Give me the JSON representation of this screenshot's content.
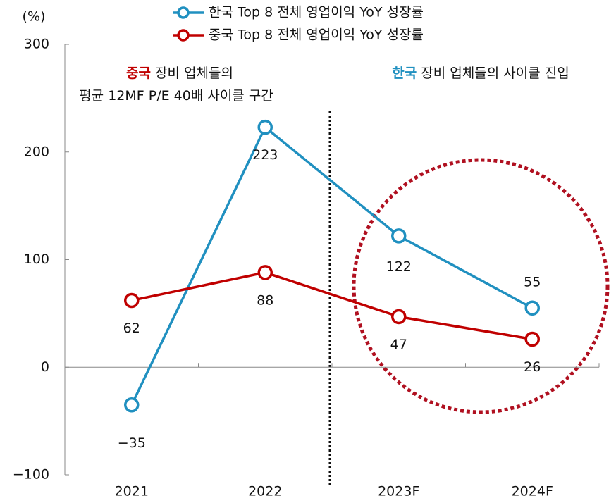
{
  "chart_data": {
    "type": "line",
    "y_unit_label": "(%)",
    "categories": [
      "2021",
      "2022",
      "2023F",
      "2024F"
    ],
    "series": [
      {
        "name": "한국 Top 8 전체 영업이익 YoY 성장률",
        "color": "#2090c0",
        "values": [
          -35,
          223,
          122,
          55
        ],
        "value_labels": [
          "−35",
          "223",
          "122",
          "55"
        ]
      },
      {
        "name": "중국 Top 8 전체 영업이익 YoY 성장률",
        "color": "#c00000",
        "values": [
          62,
          88,
          47,
          26
        ]
      }
    ],
    "ylim": [
      -100,
      300
    ],
    "yticks": [
      {
        "value": -100,
        "label": "−100"
      },
      0,
      100,
      200,
      300
    ],
    "annotations": [
      [
        {
          "text": "중국",
          "color": "#c00000"
        },
        {
          "text": " 장비 업체들의"
        }
      ],
      [
        {
          "text": "평균 12MF P/E 40배 사이클 구간"
        }
      ],
      [
        {
          "text": "한국",
          "color": "#2090c0"
        },
        {
          "text": " 장비 업체들의 사이클 진입"
        }
      ]
    ],
    "grid": false
  }
}
